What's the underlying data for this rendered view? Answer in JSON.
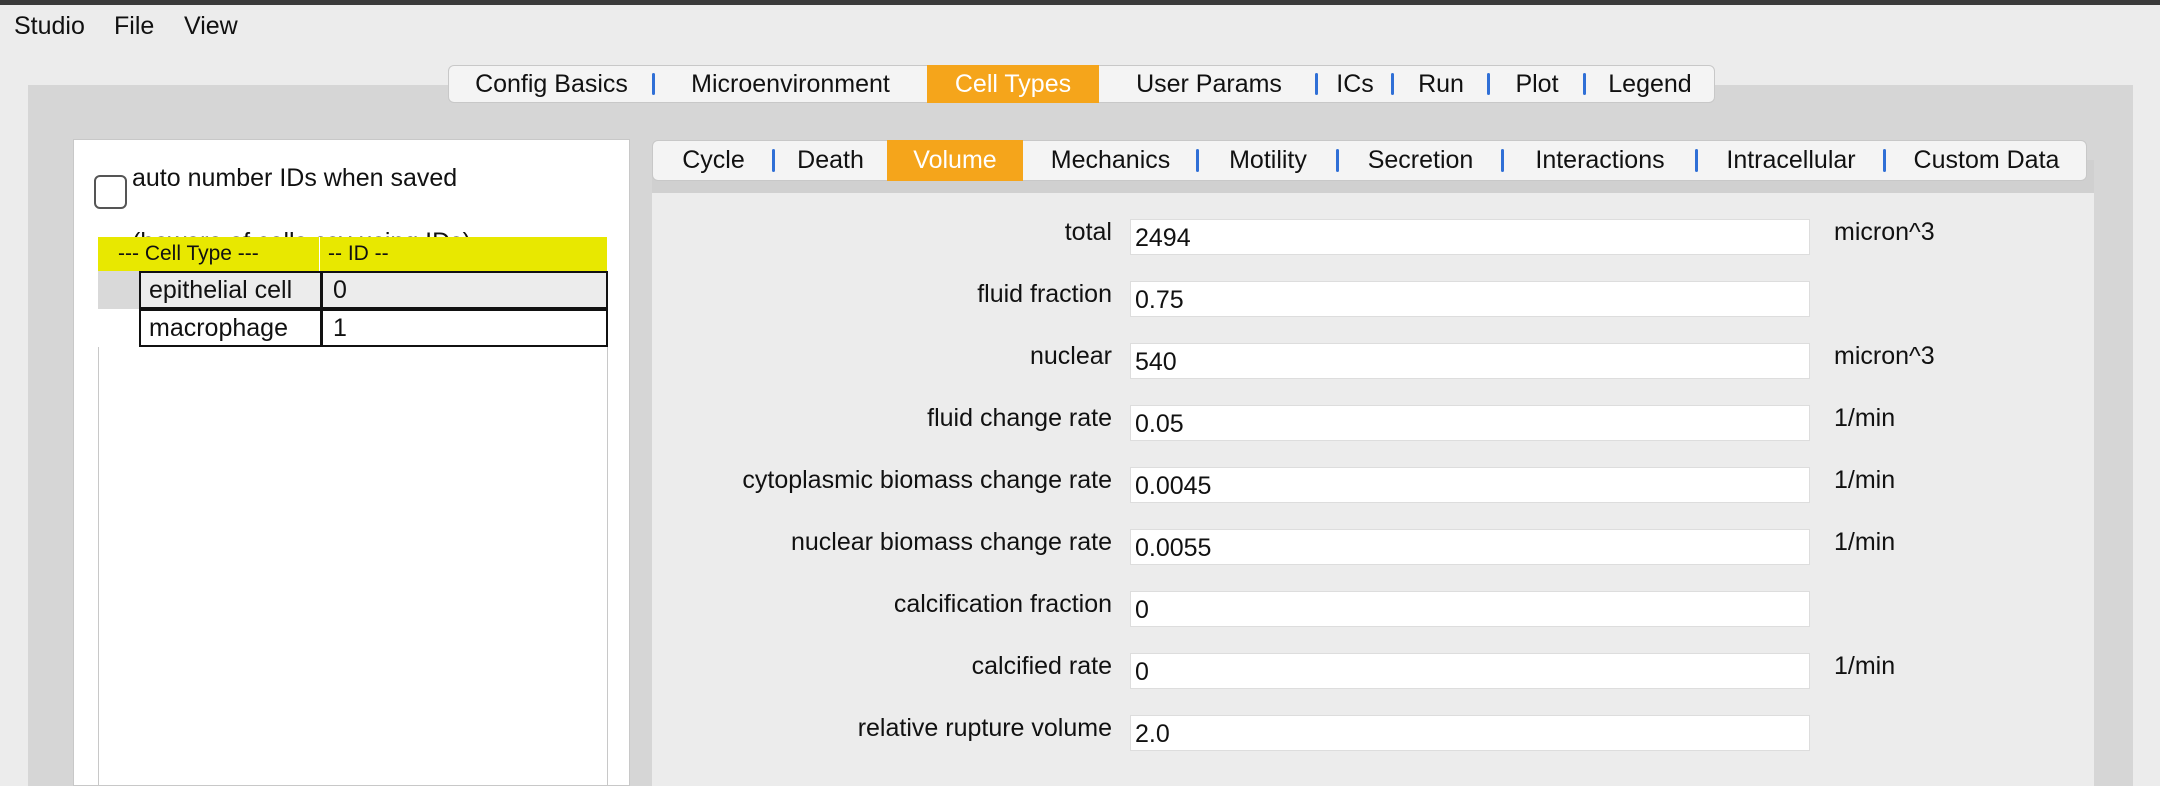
{
  "menu": [
    "Studio",
    "File",
    "View"
  ],
  "main_tabs": {
    "items": [
      "Config Basics",
      "Microenvironment",
      "Cell Types",
      "User Params",
      "ICs",
      "Run",
      "Plot",
      "Legend"
    ],
    "active": 2
  },
  "cell_panel": {
    "checkbox_label": [
      "auto number IDs when saved",
      "(beware of cells.csv using IDs)"
    ],
    "table": {
      "headers": [
        "---  Cell Type ---",
        "-- ID --"
      ],
      "rows": [
        [
          "epithelial cell",
          "0"
        ],
        [
          "macrophage",
          "1"
        ]
      ]
    }
  },
  "sub_tabs": {
    "items": [
      "Cycle",
      "Death",
      "Volume",
      "Mechanics",
      "Motility",
      "Secretion",
      "Interactions",
      "Intracellular",
      "Custom Data"
    ],
    "active": 2
  },
  "fields": [
    {
      "label": "total",
      "value": "2494",
      "unit": "micron^3"
    },
    {
      "label": "fluid fraction",
      "value": "0.75"
    },
    {
      "label": "nuclear",
      "value": "540",
      "unit": "micron^3"
    },
    {
      "label": "fluid change rate",
      "value": "0.05",
      "unit": "1/min"
    },
    {
      "label": "cytoplasmic biomass change rate",
      "value": "0.0045",
      "unit": "1/min"
    },
    {
      "label": "nuclear biomass change rate",
      "value": "0.0055",
      "unit": "1/min"
    },
    {
      "label": "calcification fraction",
      "value": "0"
    },
    {
      "label": "calcified rate",
      "value": "0",
      "unit": "1/min"
    },
    {
      "label": "relative rupture volume",
      "value": "2.0"
    }
  ]
}
